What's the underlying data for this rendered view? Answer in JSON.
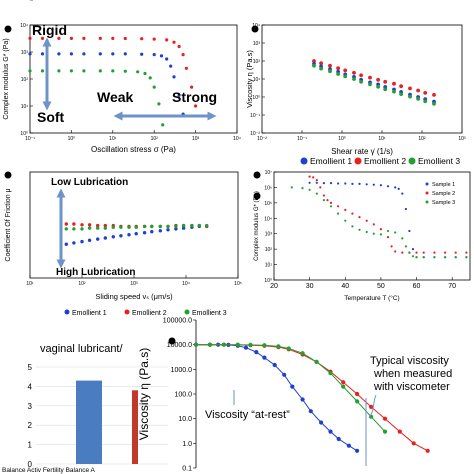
{
  "chart_data": [
    {
      "id": "p1",
      "type": "scatter",
      "title": "",
      "xlabel": "Oscillation stress σ (Pa)",
      "ylabel": "Complex modulus G* (Pa)",
      "xscale": "log",
      "yscale": "log",
      "xlim": [
        0.1,
        10000
      ],
      "ylim": [
        1,
        10000
      ],
      "xticks": [
        "10⁻¹",
        "10⁰",
        "10¹",
        "10²",
        "10³",
        "10⁴"
      ],
      "yticks": [
        "10⁰",
        "10¹",
        "10²",
        "10³",
        "10⁴"
      ],
      "series": [
        {
          "color": "#e82020",
          "x": [
            0.1,
            0.2,
            0.5,
            1,
            2,
            5,
            10,
            20,
            50,
            100,
            200,
            300,
            400,
            500,
            600,
            800,
            1000
          ],
          "y": [
            3200,
            3200,
            3200,
            3200,
            3200,
            3200,
            3200,
            3150,
            3100,
            3000,
            2800,
            2300,
            1600,
            800,
            250,
            50,
            10
          ]
        },
        {
          "color": "#1f3fd1",
          "x": [
            0.1,
            0.2,
            0.5,
            1,
            2,
            5,
            10,
            20,
            50,
            100,
            150,
            200,
            250,
            300,
            400,
            500
          ],
          "y": [
            850,
            850,
            850,
            850,
            850,
            850,
            850,
            850,
            830,
            800,
            720,
            550,
            300,
            120,
            25,
            5
          ]
        },
        {
          "color": "#23a032",
          "x": [
            0.1,
            0.2,
            0.5,
            1,
            2,
            5,
            10,
            20,
            40,
            60,
            80,
            100,
            130,
            160
          ],
          "y": [
            200,
            200,
            200,
            200,
            200,
            200,
            200,
            195,
            185,
            160,
            110,
            50,
            12,
            2
          ]
        }
      ],
      "annotations": [
        "Rigid",
        "Soft",
        "Weak",
        "Strong"
      ]
    },
    {
      "id": "p2",
      "type": "scatter",
      "title": "",
      "xlabel": "Shear rate γ̇ (1/s)",
      "ylabel": "Viscosity η (Pa.s)",
      "xscale": "log",
      "yscale": "log",
      "xlim": [
        0.01,
        1000
      ],
      "ylim": [
        0.01,
        10000
      ],
      "xticks": [
        "10⁻²",
        "10⁻¹",
        "10⁰",
        "10¹",
        "10²",
        "10³"
      ],
      "yticks": [
        "10⁻²",
        "10⁻¹",
        "10⁰",
        "10¹",
        "10²",
        "10³",
        "10⁴"
      ],
      "series": [
        {
          "color": "#e82020",
          "x": [
            0.2,
            0.3,
            0.5,
            0.8,
            1.2,
            2,
            3,
            5,
            8,
            12,
            20,
            30,
            50,
            80,
            120,
            200
          ],
          "y": [
            100,
            75,
            55,
            40,
            30,
            22,
            16,
            12,
            9,
            7,
            5.5,
            4,
            3,
            2.3,
            1.7,
            1.3
          ]
        },
        {
          "color": "#1f3fd1",
          "x": [
            0.2,
            0.3,
            0.5,
            0.8,
            1.2,
            2,
            3,
            5,
            8,
            12,
            20,
            30,
            50,
            80,
            120,
            200
          ],
          "y": [
            70,
            50,
            35,
            25,
            18,
            13,
            9,
            6.5,
            5,
            3.6,
            2.6,
            1.9,
            1.35,
            1,
            0.75,
            0.55
          ]
        },
        {
          "color": "#23a032",
          "x": [
            0.2,
            0.3,
            0.5,
            0.8,
            1.2,
            2,
            3,
            5,
            8,
            12,
            20,
            30,
            50,
            80,
            120,
            200
          ],
          "y": [
            55,
            38,
            27,
            19,
            14,
            10,
            7,
            5,
            3.7,
            2.7,
            2,
            1.45,
            1.05,
            0.78,
            0.58,
            0.42
          ]
        }
      ]
    },
    {
      "id": "p3",
      "type": "scatter",
      "title": "",
      "xlabel": "Sliding speed vₛ (μm/s)",
      "ylabel": "Coefficient Of Friction μ",
      "xscale": "log",
      "yscale": "log",
      "xlim": [
        10,
        100000
      ],
      "ylim": [
        0.05,
        1
      ],
      "xticks": [
        "10¹",
        "10²",
        "10³",
        "10⁴",
        "10⁵"
      ],
      "yticks": [
        "10⁻¹"
      ],
      "series": [
        {
          "name": "Emollient 1",
          "color": "#1f3fd1",
          "x": [
            50,
            70,
            100,
            140,
            200,
            280,
            400,
            560,
            800,
            1100,
            1600,
            2200,
            3200,
            4500,
            6400,
            9000,
            13000,
            18000,
            25000
          ],
          "y": [
            0.13,
            0.135,
            0.14,
            0.145,
            0.15,
            0.155,
            0.16,
            0.165,
            0.17,
            0.175,
            0.18,
            0.185,
            0.19,
            0.195,
            0.2,
            0.205,
            0.21,
            0.215,
            0.215
          ]
        },
        {
          "name": "Emollient 2",
          "color": "#e82020",
          "x": [
            50,
            70,
            100,
            140,
            200,
            280,
            400,
            560,
            800,
            1100,
            1600,
            2200,
            3200,
            4500,
            6400,
            9000,
            13000,
            18000,
            25000
          ],
          "y": [
            0.23,
            0.23,
            0.225,
            0.225,
            0.22,
            0.22,
            0.22,
            0.215,
            0.215,
            0.215,
            0.215,
            0.215,
            0.215,
            0.215,
            0.22,
            0.22,
            0.22,
            0.22,
            0.215
          ]
        },
        {
          "name": "Emollient 3",
          "color": "#23a032",
          "x": [
            50,
            70,
            100,
            140,
            200,
            280,
            400,
            560,
            800,
            1100,
            1600,
            2200,
            3200,
            4500,
            6400,
            9000,
            13000,
            18000,
            25000
          ],
          "y": [
            0.2,
            0.2,
            0.2,
            0.205,
            0.205,
            0.205,
            0.21,
            0.21,
            0.21,
            0.21,
            0.215,
            0.215,
            0.215,
            0.215,
            0.215,
            0.22,
            0.22,
            0.22,
            0.22
          ]
        }
      ],
      "annotations": [
        "Low Lubrication",
        "High Lubrication"
      ],
      "legend": "bottom"
    },
    {
      "id": "p4",
      "type": "scatter",
      "title": "",
      "xlabel": "Temperature T (°C)",
      "ylabel": "Complex modulus G* (Pa)",
      "xscale": "linear",
      "yscale": "log",
      "xlim": [
        20,
        75
      ],
      "ylim": [
        1,
        10000000
      ],
      "xticks": [
        "20",
        "30",
        "40",
        "50",
        "60",
        "70"
      ],
      "yticks": [
        "10⁰",
        "10¹",
        "10²",
        "10³",
        "10⁴",
        "10⁵",
        "10⁶",
        "10⁷"
      ],
      "legend": "right",
      "series": [
        {
          "name": "Sample 1",
          "color": "#1f3fd1",
          "x": [
            30,
            32,
            34,
            36,
            38,
            40,
            42,
            44,
            46,
            48,
            50,
            52,
            54,
            55,
            56,
            57,
            58,
            59,
            60,
            62,
            65,
            68,
            71,
            74
          ],
          "y": [
            2000000,
            2000000,
            1900000,
            1900000,
            1800000,
            1800000,
            1700000,
            1700000,
            1600000,
            1500000,
            1400000,
            1200000,
            1000000,
            800000,
            400000,
            40000,
            1500,
            100,
            30,
            30,
            30,
            30,
            30,
            30
          ]
        },
        {
          "name": "Sample 2",
          "color": "#e82020",
          "x": [
            30,
            31,
            32,
            33,
            34,
            35,
            36,
            38,
            40,
            42,
            44,
            46,
            48,
            50,
            52,
            53,
            54,
            56,
            58,
            60,
            62,
            65,
            68,
            71,
            74
          ],
          "y": [
            5000000,
            4500000,
            3000000,
            1000000,
            300000,
            150000,
            100000,
            60000,
            35000,
            20000,
            12000,
            7000,
            4000,
            2000,
            600,
            150,
            70,
            60,
            60,
            60,
            60,
            60,
            60,
            60,
            60
          ]
        },
        {
          "name": "Sample 3",
          "color": "#23a032",
          "x": [
            25,
            28,
            30,
            32,
            34,
            36,
            38,
            40,
            42,
            44,
            46,
            48,
            50,
            52,
            54,
            56,
            57,
            58,
            59,
            60,
            62,
            65,
            68,
            71,
            74
          ],
          "y": [
            1000000,
            900000,
            700000,
            400000,
            150000,
            60000,
            20000,
            7000,
            3000,
            1800,
            1300,
            1000,
            900,
            1500,
            1200,
            500,
            150,
            60,
            35,
            30,
            30,
            30,
            30,
            30,
            30
          ]
        }
      ]
    },
    {
      "id": "p5",
      "type": "bar",
      "title": "vaginal lubricant/",
      "categories": [
        "Balance Activ",
        "Fertility",
        "Balance A"
      ],
      "category_label_text": "Balance Activ Fertility  Balance A",
      "values": [
        4.3,
        0,
        3.8
      ],
      "ylim": [
        0,
        5
      ],
      "yticks": [
        "0",
        "1",
        "2",
        "3",
        "4",
        "5"
      ],
      "colors": [
        "#4a7cc2",
        "#4a7cc2",
        "#c0392b"
      ]
    },
    {
      "id": "p6",
      "type": "scatter",
      "title": "",
      "ylabel": "Viscosity η (Pa.s)",
      "xscale": "log",
      "yscale": "log",
      "xlim": [
        0.001,
        1000
      ],
      "ylim": [
        0.1,
        100000
      ],
      "yticks": [
        "100000.0",
        "10000.0",
        "1000.0",
        "100.0",
        "10.0",
        "1.0",
        "0.1"
      ],
      "series": [
        {
          "color": "#1f3fd1",
          "x": [
            0.001,
            0.002,
            0.003,
            0.005,
            0.008,
            0.012,
            0.02,
            0.03,
            0.05,
            0.08,
            0.12,
            0.2,
            0.3,
            0.5,
            0.8,
            1.2,
            2,
            3
          ],
          "y": [
            10000,
            10000,
            10000,
            9800,
            9000,
            7500,
            5000,
            3000,
            1500,
            600,
            200,
            60,
            20,
            7,
            3,
            1.5,
            0.8,
            0.5
          ]
        },
        {
          "color": "#e82020",
          "x": [
            0.001,
            0.002,
            0.004,
            0.008,
            0.015,
            0.03,
            0.06,
            0.1,
            0.2,
            0.4,
            0.8,
            1.5,
            3,
            6,
            12,
            25,
            50,
            100
          ],
          "y": [
            10000,
            10000,
            10000,
            9800,
            9500,
            9000,
            8000,
            6500,
            4000,
            2000,
            800,
            300,
            100,
            30,
            10,
            3,
            1,
            0.5
          ]
        },
        {
          "color": "#23a032",
          "x": [
            0.001,
            0.002,
            0.004,
            0.008,
            0.015,
            0.03,
            0.06,
            0.1,
            0.2,
            0.4,
            0.8,
            1.5,
            3,
            6,
            12
          ],
          "y": [
            10000,
            10000,
            10000,
            10000,
            9800,
            9500,
            8500,
            7000,
            4500,
            2000,
            700,
            200,
            50,
            12,
            3
          ]
        }
      ],
      "annotations": [
        "Typical viscosity\nwhen measured\nwith viscometer",
        "Viscosity “at-rest”"
      ]
    }
  ],
  "legend_bar": {
    "items": [
      {
        "label": "Emollient 1",
        "color": "#1f3fd1"
      },
      {
        "label": "Emollient 2",
        "color": "#e82020"
      },
      {
        "label": "Emollient 3",
        "color": "#23a032"
      }
    ]
  },
  "annotations": {
    "p1_rigid": "Rigid",
    "p1_soft": "Soft",
    "p1_weak": "Weak",
    "p1_strong": "Strong",
    "p3_low": "Low Lubrication",
    "p3_high": "High Lubrication",
    "p6_typical_1": "Typical viscosity",
    "p6_typical_2": "when measured",
    "p6_typical_3": "with viscometer",
    "p6_rest": "Viscosity “at-rest”"
  },
  "arrow_color": "#6e93c8"
}
